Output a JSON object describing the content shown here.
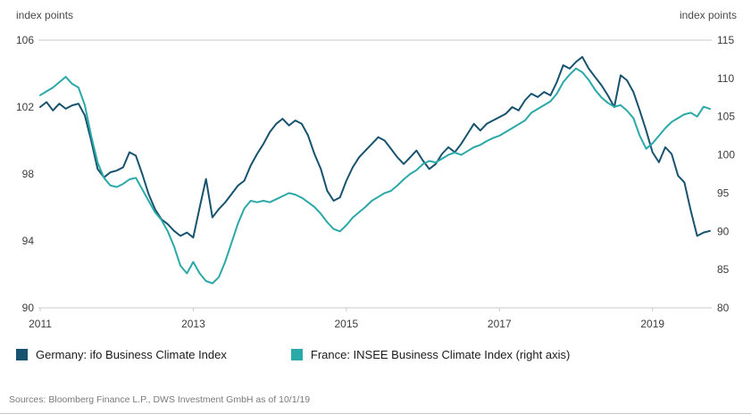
{
  "header": {
    "left_axis_title": "index points",
    "right_axis_title": "index points"
  },
  "legend": [
    {
      "label": "Germany: ifo Business Climate Index",
      "color": "#17536F"
    },
    {
      "label": "France: INSEE Business Climate Index (right axis)",
      "color": "#2BA8A8"
    }
  ],
  "footer": {
    "sources": "Sources: Bloomberg Finance L.P., DWS Investment GmbH as of 10/1/19"
  },
  "chart_data": {
    "type": "line",
    "x_start_year": 2011,
    "points_per_year": 12,
    "x_tick_labels": [
      "2011",
      "2013",
      "2015",
      "2017",
      "2019"
    ],
    "grid": "top and bottom rules only",
    "legend_position": "bottom",
    "left_axis": {
      "title": "index points",
      "ticks": [
        90,
        94,
        98,
        102,
        106
      ],
      "range": [
        90,
        106
      ]
    },
    "right_axis": {
      "title": "index points",
      "ticks": [
        80,
        85,
        90,
        95,
        100,
        105,
        110,
        115
      ],
      "range": [
        80,
        115
      ]
    },
    "series": [
      {
        "name": "Germany: ifo Business Climate Index",
        "axis": "left",
        "color": "#17536F",
        "values": [
          102.0,
          102.3,
          101.8,
          102.2,
          101.9,
          102.1,
          102.2,
          101.5,
          100.0,
          98.3,
          97.8,
          98.1,
          98.2,
          98.4,
          99.3,
          99.1,
          98.0,
          96.8,
          95.9,
          95.3,
          95.0,
          94.6,
          94.3,
          94.5,
          94.2,
          96.0,
          97.7,
          95.4,
          95.9,
          96.3,
          96.8,
          97.3,
          97.6,
          98.5,
          99.2,
          99.8,
          100.5,
          101.0,
          101.3,
          100.9,
          101.2,
          101.0,
          100.3,
          99.2,
          98.3,
          97.0,
          96.4,
          96.6,
          97.6,
          98.4,
          99.0,
          99.4,
          99.8,
          100.2,
          100.0,
          99.5,
          99.0,
          98.6,
          99.0,
          99.4,
          98.8,
          98.3,
          98.6,
          99.2,
          99.6,
          99.3,
          99.8,
          100.4,
          101.0,
          100.6,
          101.0,
          101.2,
          101.4,
          101.6,
          102.0,
          101.8,
          102.4,
          102.8,
          102.6,
          102.9,
          102.7,
          103.5,
          104.5,
          104.3,
          104.7,
          105.0,
          104.3,
          103.8,
          103.3,
          102.7,
          102.0,
          103.9,
          103.6,
          102.9,
          101.8,
          100.6,
          99.3,
          98.7,
          99.6,
          99.2,
          97.9,
          97.5,
          95.8,
          94.3,
          94.5,
          94.6
        ]
      },
      {
        "name": "France: INSEE Business Climate Index",
        "axis": "right",
        "color": "#2BA8A8",
        "values": [
          107.8,
          108.3,
          108.8,
          109.5,
          110.2,
          109.3,
          108.8,
          106.5,
          102.5,
          99.0,
          97.0,
          96.0,
          95.8,
          96.2,
          96.8,
          97.0,
          95.5,
          94.0,
          92.5,
          91.5,
          90.0,
          88.0,
          85.5,
          84.5,
          86.0,
          84.5,
          83.5,
          83.2,
          84.0,
          86.0,
          88.5,
          91.0,
          93.0,
          94.0,
          93.8,
          94.0,
          93.8,
          94.2,
          94.6,
          95.0,
          94.8,
          94.4,
          93.8,
          93.2,
          92.3,
          91.2,
          90.3,
          90.0,
          90.8,
          91.8,
          92.5,
          93.2,
          94.0,
          94.5,
          95.0,
          95.3,
          96.0,
          96.8,
          97.5,
          98.0,
          98.8,
          99.2,
          99.0,
          99.5,
          100.0,
          100.3,
          100.0,
          100.5,
          101.0,
          101.3,
          101.8,
          102.2,
          102.5,
          103.0,
          103.5,
          104.0,
          104.5,
          105.5,
          106.0,
          106.5,
          107.0,
          108.0,
          109.5,
          110.5,
          111.3,
          110.8,
          109.8,
          108.5,
          107.5,
          106.8,
          106.3,
          106.5,
          105.8,
          104.8,
          102.5,
          100.8,
          101.5,
          102.5,
          103.5,
          104.3,
          104.8,
          105.3,
          105.5,
          105.0,
          106.3,
          106.0
        ]
      }
    ]
  }
}
